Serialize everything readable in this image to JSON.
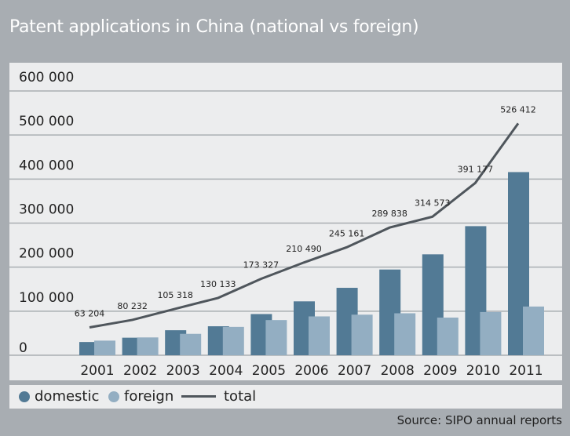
{
  "chart_data": {
    "type": "bar",
    "title": "Patent applications in China (national vs foreign)",
    "categories": [
      "2001",
      "2002",
      "2003",
      "2004",
      "2005",
      "2006",
      "2007",
      "2008",
      "2009",
      "2010",
      "2011"
    ],
    "series": [
      {
        "name": "domestic",
        "type": "bar",
        "color": "#527a95",
        "values": [
          30038,
          39806,
          56769,
          65786,
          93485,
          122318,
          153060,
          194579,
          229096,
          293066,
          415829
        ]
      },
      {
        "name": "foreign",
        "type": "bar",
        "color": "#93aec2",
        "values": [
          33166,
          40426,
          48549,
          64347,
          79842,
          88172,
          92101,
          95259,
          85477,
          98111,
          110583
        ]
      },
      {
        "name": "total",
        "type": "line",
        "color": "#4f565c",
        "values": [
          63204,
          80232,
          105318,
          130133,
          173327,
          210490,
          245161,
          289838,
          314573,
          391177,
          526412
        ],
        "labels": [
          "63 204",
          "80 232",
          "105 318",
          "130 133",
          "173 327",
          "210 490",
          "245 161",
          "289 838",
          "314 573",
          "391 177",
          "526 412"
        ]
      }
    ],
    "yticks": [
      0,
      100000,
      200000,
      300000,
      400000,
      500000,
      600000
    ],
    "ytick_labels": [
      "0",
      "100 000",
      "200 000",
      "300 000",
      "400 000",
      "500 000",
      "600 000"
    ],
    "ylim": [
      0,
      600000
    ],
    "grid": true,
    "legend_position": "bottom-left",
    "xlabel": "",
    "ylabel": "",
    "source": "Source: SIPO annual reports"
  }
}
